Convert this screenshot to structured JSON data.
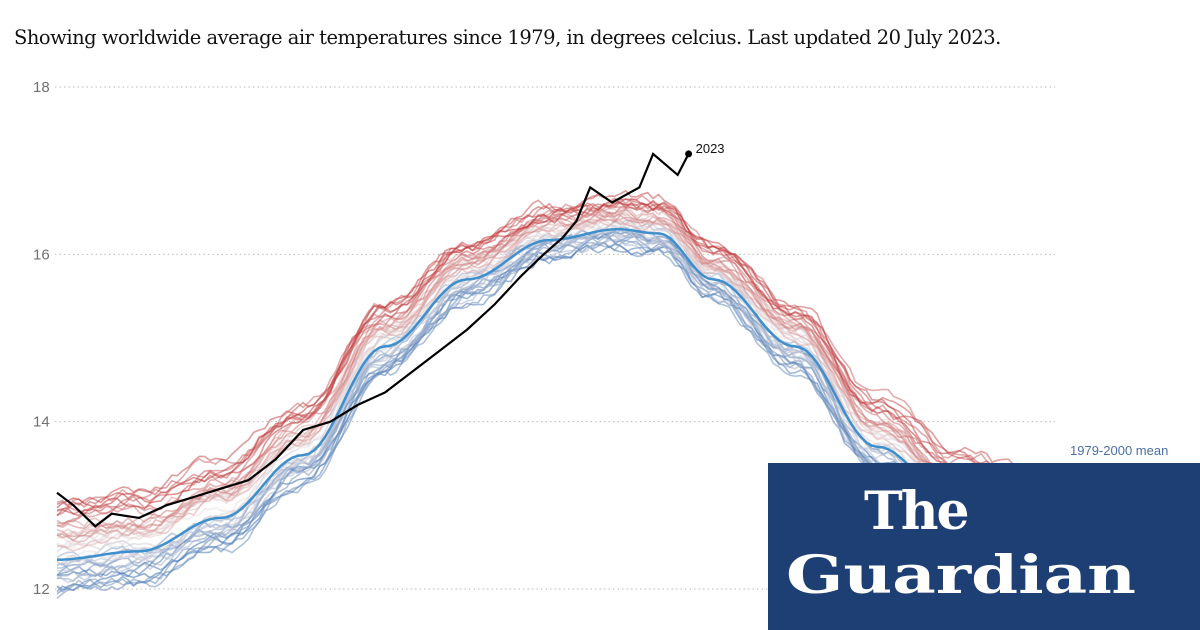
{
  "subtitle": "Showing worldwide average air temperatures since 1979, in degrees celcius. Last updated 20 July 2023.",
  "logo": {
    "line1": "The",
    "line2": "Guardian",
    "background": "#1e3f73"
  },
  "chart_data": {
    "type": "line",
    "title": "",
    "xlabel": "",
    "ylabel": "",
    "x_unit": "day of year",
    "xlim": [
      0,
      365
    ],
    "ylim": [
      12,
      18
    ],
    "yticks": [
      12,
      14,
      16,
      18
    ],
    "grid": "horizontal dotted",
    "colors": {
      "cold": "#3b6fb0",
      "warm": "#c0393b",
      "mean": "#3f8fcc",
      "current": "#000000"
    },
    "mean": {
      "label": "1979-2000 mean",
      "points": [
        [
          0,
          12.35
        ],
        [
          30,
          12.45
        ],
        [
          60,
          12.85
        ],
        [
          90,
          13.6
        ],
        [
          120,
          14.9
        ],
        [
          150,
          15.7
        ],
        [
          180,
          16.17
        ],
        [
          205,
          16.3
        ],
        [
          220,
          16.25
        ],
        [
          240,
          15.7
        ],
        [
          270,
          14.9
        ],
        [
          300,
          13.7
        ],
        [
          330,
          13.0
        ],
        [
          365,
          12.6
        ]
      ]
    },
    "current_year": {
      "name": "2023",
      "points": [
        [
          0,
          13.15
        ],
        [
          6,
          13.0
        ],
        [
          14,
          12.75
        ],
        [
          20,
          12.9
        ],
        [
          30,
          12.85
        ],
        [
          40,
          13.0
        ],
        [
          50,
          13.1
        ],
        [
          60,
          13.2
        ],
        [
          70,
          13.3
        ],
        [
          80,
          13.55
        ],
        [
          90,
          13.9
        ],
        [
          100,
          14.0
        ],
        [
          110,
          14.2
        ],
        [
          120,
          14.35
        ],
        [
          130,
          14.6
        ],
        [
          140,
          14.85
        ],
        [
          150,
          15.1
        ],
        [
          160,
          15.4
        ],
        [
          170,
          15.75
        ],
        [
          178,
          16.0
        ],
        [
          185,
          16.2
        ],
        [
          190,
          16.4
        ],
        [
          195,
          16.8
        ],
        [
          203,
          16.62
        ],
        [
          213,
          16.8
        ],
        [
          218,
          17.2
        ],
        [
          227,
          16.95
        ],
        [
          231,
          17.2
        ]
      ]
    },
    "years": [
      {
        "year": 1979,
        "offset": -0.25
      },
      {
        "year": 1980,
        "offset": -0.15
      },
      {
        "year": 1981,
        "offset": -0.18
      },
      {
        "year": 1982,
        "offset": -0.3
      },
      {
        "year": 1983,
        "offset": -0.12
      },
      {
        "year": 1984,
        "offset": -0.28
      },
      {
        "year": 1985,
        "offset": -0.32
      },
      {
        "year": 1986,
        "offset": -0.22
      },
      {
        "year": 1987,
        "offset": -0.08
      },
      {
        "year": 1988,
        "offset": -0.05
      },
      {
        "year": 1989,
        "offset": -0.16
      },
      {
        "year": 1990,
        "offset": -0.02
      },
      {
        "year": 1991,
        "offset": -0.04
      },
      {
        "year": 1992,
        "offset": -0.2
      },
      {
        "year": 1993,
        "offset": -0.15
      },
      {
        "year": 1994,
        "offset": -0.07
      },
      {
        "year": 1995,
        "offset": 0.02
      },
      {
        "year": 1996,
        "offset": -0.05
      },
      {
        "year": 1997,
        "offset": 0.05
      },
      {
        "year": 1998,
        "offset": 0.18
      },
      {
        "year": 1999,
        "offset": 0.02
      },
      {
        "year": 2000,
        "offset": 0.03
      },
      {
        "year": 2001,
        "offset": 0.12
      },
      {
        "year": 2002,
        "offset": 0.18
      },
      {
        "year": 2003,
        "offset": 0.2
      },
      {
        "year": 2004,
        "offset": 0.16
      },
      {
        "year": 2005,
        "offset": 0.24
      },
      {
        "year": 2006,
        "offset": 0.22
      },
      {
        "year": 2007,
        "offset": 0.24
      },
      {
        "year": 2008,
        "offset": 0.14
      },
      {
        "year": 2009,
        "offset": 0.24
      },
      {
        "year": 2010,
        "offset": 0.32
      },
      {
        "year": 2011,
        "offset": 0.22
      },
      {
        "year": 2012,
        "offset": 0.27
      },
      {
        "year": 2013,
        "offset": 0.3
      },
      {
        "year": 2014,
        "offset": 0.33
      },
      {
        "year": 2015,
        "offset": 0.4
      },
      {
        "year": 2016,
        "offset": 0.52
      },
      {
        "year": 2017,
        "offset": 0.46
      },
      {
        "year": 2018,
        "offset": 0.42
      },
      {
        "year": 2019,
        "offset": 0.5
      },
      {
        "year": 2020,
        "offset": 0.52
      },
      {
        "year": 2021,
        "offset": 0.45
      },
      {
        "year": 2022,
        "offset": 0.48
      }
    ]
  }
}
